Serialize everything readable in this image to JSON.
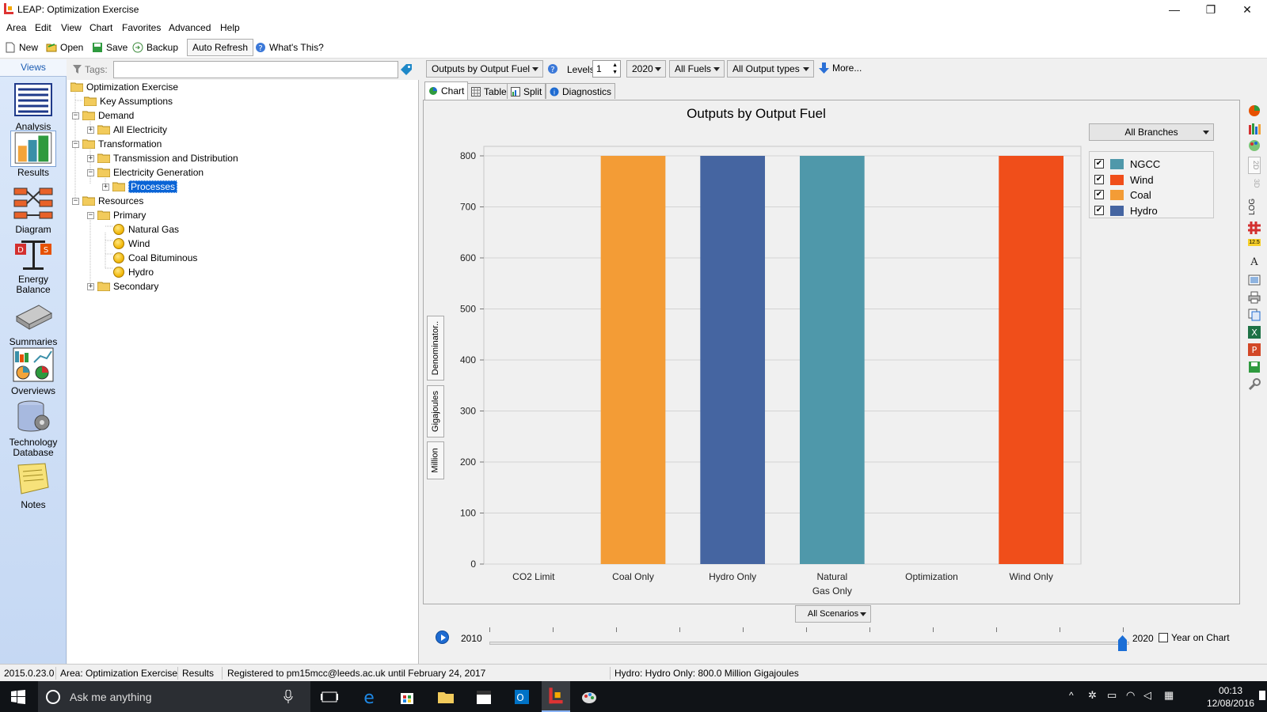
{
  "window": {
    "title": "LEAP: Optimization Exercise"
  },
  "menu": [
    "Area",
    "Edit",
    "View",
    "Chart",
    "Favorites",
    "Advanced",
    "Help"
  ],
  "toolbar": {
    "new_label": "New",
    "open_label": "Open",
    "save_label": "Save",
    "backup_label": "Backup",
    "auto_refresh_label": "Auto Refresh",
    "whats_this_label": "What's This?"
  },
  "views": {
    "header": "Views",
    "items": [
      {
        "label": "Analysis",
        "icon": "analysis-icon"
      },
      {
        "label": "Results",
        "icon": "results-icon"
      },
      {
        "label": "Diagram",
        "icon": "diagram-icon"
      },
      {
        "label": "Energy Balance",
        "icon": "energy-balance-icon"
      },
      {
        "label": "Summaries",
        "icon": "summaries-icon"
      },
      {
        "label": "Overviews",
        "icon": "overviews-icon"
      },
      {
        "label": "Technology Database",
        "icon": "technology-database-icon"
      },
      {
        "label": "Notes",
        "icon": "notes-icon"
      }
    ]
  },
  "tree": {
    "tags_label": "Tags:",
    "tags_value": "",
    "nodes": [
      {
        "label": "Optimization Exercise"
      },
      {
        "label": "Key Assumptions"
      },
      {
        "label": "Demand"
      },
      {
        "label": "All Electricity"
      },
      {
        "label": "Transformation"
      },
      {
        "label": "Transmission and Distribution"
      },
      {
        "label": "Electricity Generation"
      },
      {
        "label": "Processes"
      },
      {
        "label": "Resources"
      },
      {
        "label": "Primary"
      },
      {
        "label": "Natural Gas"
      },
      {
        "label": "Wind"
      },
      {
        "label": "Coal Bituminous"
      },
      {
        "label": "Hydro"
      },
      {
        "label": "Secondary"
      }
    ]
  },
  "controls": {
    "report_select": "Outputs by Output Fuel",
    "levels_label": "Levels:",
    "levels_value": "1",
    "year_select": "2020",
    "fuels_select": "All Fuels",
    "output_types_select": "All Output types",
    "more_label": "More..."
  },
  "tabs": [
    "Chart",
    "Table",
    "Split",
    "Diagnostics"
  ],
  "chart_panel": {
    "branches_select": "All Branches",
    "vtabs": [
      "Denominator..",
      "Gigajoules",
      "Million"
    ],
    "legend_checks": "✔"
  },
  "chart_data": {
    "type": "bar",
    "title": "Outputs by Output Fuel",
    "categories": [
      "CO2 Limit",
      "Coal Only",
      "Hydro Only",
      "Natural Gas Only",
      "Optimization",
      "Wind Only"
    ],
    "category_labels": [
      [
        "CO2 Limit"
      ],
      [
        "Coal Only"
      ],
      [
        "Hydro Only"
      ],
      [
        "Natural",
        "Gas Only"
      ],
      [
        "Optimization"
      ],
      [
        "Wind Only"
      ]
    ],
    "series": [
      {
        "name": "NGCC",
        "color": "#4f98aa",
        "values": [
          0,
          0,
          0,
          800,
          0,
          0
        ]
      },
      {
        "name": "Wind",
        "color": "#f04e1a",
        "values": [
          0,
          0,
          0,
          0,
          0,
          800
        ]
      },
      {
        "name": "Coal",
        "color": "#f39c36",
        "values": [
          0,
          800,
          0,
          0,
          0,
          0
        ]
      },
      {
        "name": "Hydro",
        "color": "#4565a1",
        "values": [
          0,
          0,
          800,
          0,
          0,
          0
        ]
      }
    ],
    "ylim": [
      0,
      800
    ],
    "yticks": [
      0,
      100,
      200,
      300,
      400,
      500,
      600,
      700,
      800
    ],
    "grid": true,
    "legend_position": "right"
  },
  "timeline": {
    "scenarios_select": "All Scenarios",
    "start_year": "2010",
    "end_year": "2020",
    "year_on_chart_label": "Year on Chart"
  },
  "status": {
    "version": "2015.0.23.0",
    "area": "Area: Optimization Exercise",
    "view": "Results",
    "registration": "Registered to pm15mcc@leeds.ac.uk until February 24, 2017",
    "hover_info": "Hydro: Hydro Only: 800.0 Million Gigajoules"
  },
  "taskbar": {
    "search_placeholder": "Ask me anything",
    "time": "00:13",
    "date": "12/08/2016"
  }
}
